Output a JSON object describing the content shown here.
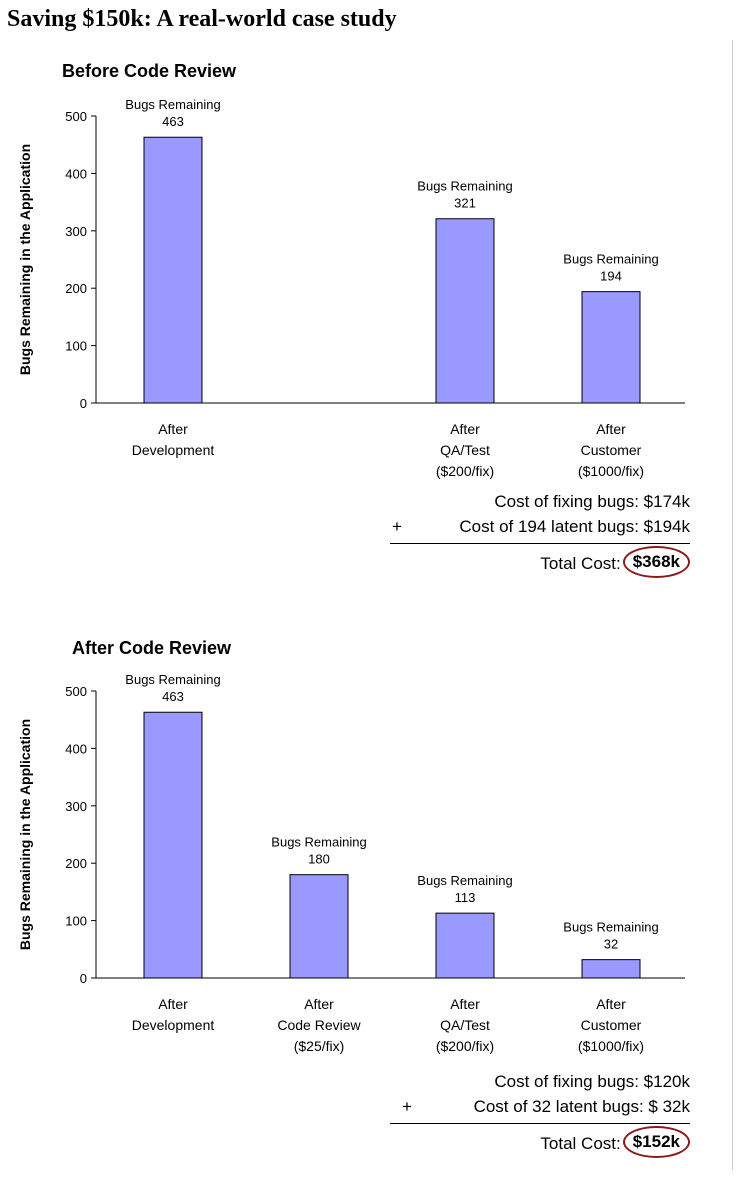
{
  "page_title": "Saving $150k: A real-world case study",
  "colors": {
    "bar_fill": "#9999ff",
    "bar_stroke": "#000000",
    "circle": "#8b1a1a"
  },
  "chart_data": [
    {
      "type": "bar",
      "title": "Before Code Review",
      "ylabel": "Bugs Remaining in the Application",
      "ylim": [
        0,
        500
      ],
      "yticks": [
        0,
        100,
        200,
        300,
        400,
        500
      ],
      "grid": false,
      "categories": [
        [
          "After",
          "Development"
        ],
        [],
        [
          "After",
          "QA/Test",
          "($200/fix)"
        ],
        [
          "After",
          "Customer",
          "($1000/fix)"
        ]
      ],
      "values": [
        463,
        null,
        321,
        194
      ],
      "bar_label_prefix": "Bugs Remaining"
    },
    {
      "type": "bar",
      "title": "After Code Review",
      "ylabel": "Bugs Remaining in the Application",
      "ylim": [
        0,
        500
      ],
      "yticks": [
        0,
        100,
        200,
        300,
        400,
        500
      ],
      "grid": false,
      "categories": [
        [
          "After",
          "Development"
        ],
        [
          "After",
          "Code Review",
          "($25/fix)"
        ],
        [
          "After",
          "QA/Test",
          "($200/fix)"
        ],
        [
          "After",
          "Customer",
          "($1000/fix)"
        ]
      ],
      "values": [
        463,
        180,
        113,
        32
      ],
      "bar_label_prefix": "Bugs Remaining"
    }
  ],
  "costs": [
    {
      "line1": "Cost of fixing bugs: $174k",
      "plus": "+",
      "line2": "Cost of 194 latent bugs: $194k",
      "total_label": "Total Cost:",
      "total_value": "$368k"
    },
    {
      "line1": "Cost of fixing bugs: $120k",
      "plus": "+",
      "line2": "Cost of 32 latent bugs: $  32k",
      "total_label": "Total Cost:",
      "total_value": "$152k"
    }
  ]
}
